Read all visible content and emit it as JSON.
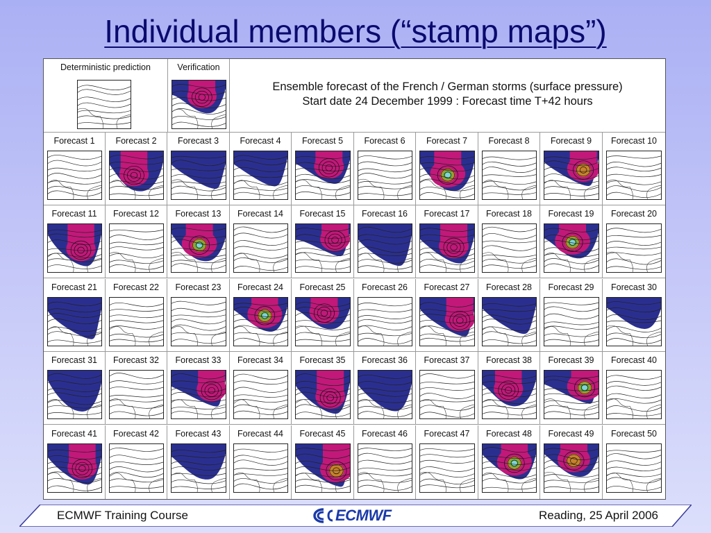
{
  "slide": {
    "title": "Individual members (“stamp maps”)"
  },
  "header": {
    "deterministic_label": "Deterministic prediction",
    "verification_label": "Verification",
    "line1": "Ensemble forecast of the French / German storms (surface pressure)",
    "line2": "Start date 24 December 1999 : Forecast time T+42 hours"
  },
  "forecasts": [
    {
      "label": "Forecast  1",
      "intensity": 0
    },
    {
      "label": "Forecast  2",
      "intensity": 2
    },
    {
      "label": "Forecast  3",
      "intensity": 1
    },
    {
      "label": "Forecast  4",
      "intensity": 1
    },
    {
      "label": "Forecast  5",
      "intensity": 2
    },
    {
      "label": "Forecast  6",
      "intensity": 0
    },
    {
      "label": "Forecast  7",
      "intensity": 4
    },
    {
      "label": "Forecast  8",
      "intensity": 0
    },
    {
      "label": "Forecast  9",
      "intensity": 3
    },
    {
      "label": "Forecast 10",
      "intensity": 0
    },
    {
      "label": "Forecast 11",
      "intensity": 2
    },
    {
      "label": "Forecast 12",
      "intensity": 0
    },
    {
      "label": "Forecast 13",
      "intensity": 4
    },
    {
      "label": "Forecast 14",
      "intensity": 0
    },
    {
      "label": "Forecast 15",
      "intensity": 2
    },
    {
      "label": "Forecast 16",
      "intensity": 1
    },
    {
      "label": "Forecast 17",
      "intensity": 2
    },
    {
      "label": "Forecast 18",
      "intensity": 0
    },
    {
      "label": "Forecast 19",
      "intensity": 4
    },
    {
      "label": "Forecast 20",
      "intensity": 0
    },
    {
      "label": "Forecast 21",
      "intensity": 1
    },
    {
      "label": "Forecast 22",
      "intensity": 0
    },
    {
      "label": "Forecast 23",
      "intensity": 0
    },
    {
      "label": "Forecast 24",
      "intensity": 4
    },
    {
      "label": "Forecast 25",
      "intensity": 2
    },
    {
      "label": "Forecast 26",
      "intensity": 0
    },
    {
      "label": "Forecast 27",
      "intensity": 2
    },
    {
      "label": "Forecast 28",
      "intensity": 1
    },
    {
      "label": "Forecast 29",
      "intensity": 0
    },
    {
      "label": "Forecast 30",
      "intensity": 1
    },
    {
      "label": "Forecast 31",
      "intensity": 1
    },
    {
      "label": "Forecast 32",
      "intensity": 0
    },
    {
      "label": "Forecast 33",
      "intensity": 2
    },
    {
      "label": "Forecast 34",
      "intensity": 0
    },
    {
      "label": "Forecast 35",
      "intensity": 2
    },
    {
      "label": "Forecast 36",
      "intensity": 1
    },
    {
      "label": "Forecast 37",
      "intensity": 0
    },
    {
      "label": "Forecast 38",
      "intensity": 2
    },
    {
      "label": "Forecast 39",
      "intensity": 4
    },
    {
      "label": "Forecast 40",
      "intensity": 0
    },
    {
      "label": "Forecast 41",
      "intensity": 2
    },
    {
      "label": "Forecast 42",
      "intensity": 0
    },
    {
      "label": "Forecast 43",
      "intensity": 1
    },
    {
      "label": "Forecast 44",
      "intensity": 0
    },
    {
      "label": "Forecast 45",
      "intensity": 3
    },
    {
      "label": "Forecast 46",
      "intensity": 0
    },
    {
      "label": "Forecast 47",
      "intensity": 0
    },
    {
      "label": "Forecast 48",
      "intensity": 4
    },
    {
      "label": "Forecast 49",
      "intensity": 3
    },
    {
      "label": "Forecast 50",
      "intensity": 0
    }
  ],
  "colors": {
    "navy": "#2a2f8f",
    "magenta": "#c2187a",
    "orange": "#c7822a",
    "green": "#6db33f",
    "cyan": "#7fd3e0",
    "footer_band": "#ffffff",
    "logo": "#1b3aa8"
  },
  "footer": {
    "left": "ECMWF Training Course",
    "logo": "ECMWF",
    "right": "Reading, 25 April 2006"
  }
}
